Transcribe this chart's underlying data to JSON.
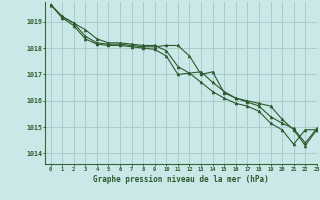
{
  "title": "Graphe pression niveau de la mer (hPa)",
  "background_color": "#cbe8e8",
  "grid_color": "#aacccc",
  "line_color": "#2d5a2d",
  "marker_color": "#2d5a2d",
  "xmin": -0.5,
  "xmax": 23,
  "ymin": 1013.6,
  "ymax": 1019.75,
  "yticks": [
    1014,
    1015,
    1016,
    1017,
    1018,
    1019
  ],
  "xticks": [
    0,
    1,
    2,
    3,
    4,
    5,
    6,
    7,
    8,
    9,
    10,
    11,
    12,
    13,
    14,
    15,
    16,
    17,
    18,
    19,
    20,
    21,
    22,
    23
  ],
  "series": [
    [
      1019.65,
      1019.2,
      1018.95,
      1018.45,
      1018.2,
      1018.15,
      1018.15,
      1018.1,
      1018.05,
      1018.05,
      1018.1,
      1018.1,
      1017.7,
      1017.0,
      1017.1,
      1016.3,
      1016.1,
      1016.0,
      1015.9,
      1015.8,
      1015.3,
      1014.9,
      1014.3,
      1014.9
    ],
    [
      1019.65,
      1019.2,
      1018.95,
      1018.7,
      1018.35,
      1018.2,
      1018.2,
      1018.15,
      1018.1,
      1018.1,
      1017.9,
      1017.3,
      1017.05,
      1017.1,
      1016.7,
      1016.35,
      1016.1,
      1015.95,
      1015.8,
      1015.4,
      1015.15,
      1014.95,
      1014.4,
      1014.95
    ],
    [
      1019.65,
      1019.15,
      1018.85,
      1018.35,
      1018.15,
      1018.1,
      1018.1,
      1018.05,
      1018.0,
      1017.95,
      1017.7,
      1017.0,
      1017.05,
      1016.7,
      1016.35,
      1016.1,
      1015.9,
      1015.8,
      1015.6,
      1015.15,
      1014.9,
      1014.35,
      1014.9,
      1014.9
    ]
  ]
}
